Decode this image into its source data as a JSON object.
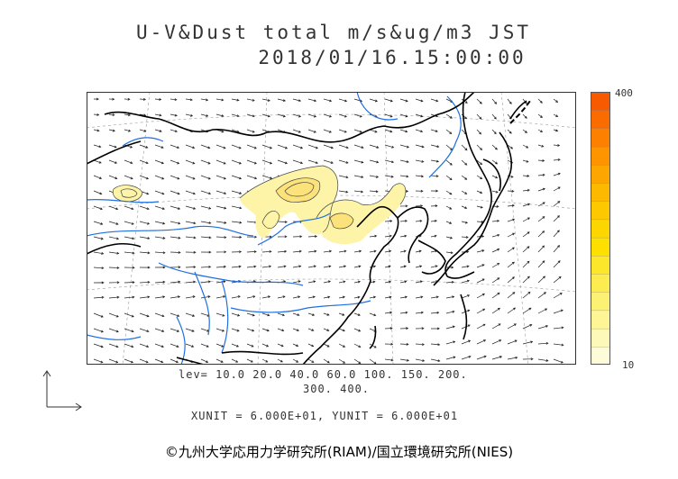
{
  "header": {
    "title_line1": "U-V&Dust total m/s&ug/m3 JST",
    "title_line2": "2018/01/16.15:00:00"
  },
  "colorbar": {
    "max_label": "400",
    "min_label": "10",
    "colors": [
      "#fefcd8",
      "#fdf9b8",
      "#fdf596",
      "#fdf173",
      "#fdec4f",
      "#fde72b",
      "#fde000",
      "#fdd500",
      "#fdc800",
      "#fdb800",
      "#fda600",
      "#fd9400",
      "#fd8000",
      "#fb6c00",
      "#f85a00"
    ]
  },
  "levels": {
    "line1": "lev= 10.0 20.0 40.0 60.0 100. 150. 200.",
    "line2": "300. 400."
  },
  "units": {
    "text": "XUNIT = 6.000E+01, YUNIT = 6.000E+01"
  },
  "credit": {
    "text": "©九州大学応用力学研究所(RIAM)/国立環境研究所(NIES)"
  },
  "colors": {
    "coast": "#000000",
    "river": "#1f6fe0",
    "dust_light": "#fdf4a8",
    "dust_mid": "#fbe27a",
    "contour": "#444444"
  }
}
